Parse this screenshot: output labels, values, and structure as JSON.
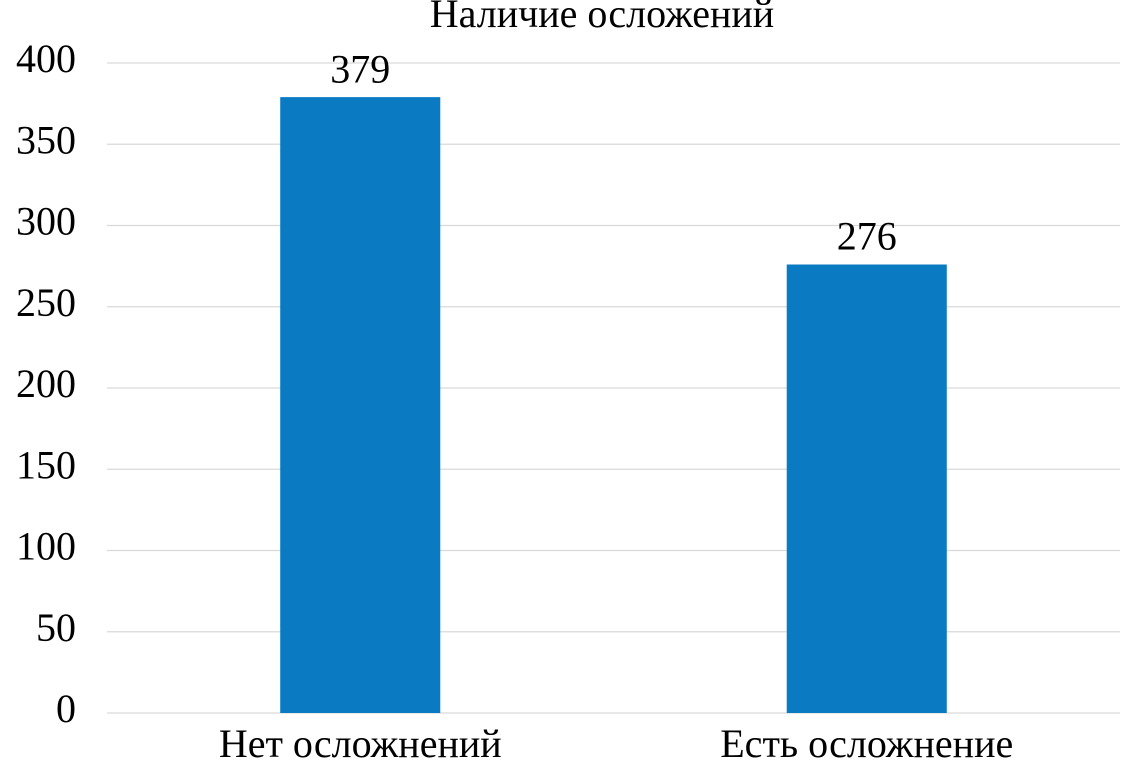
{
  "chart_data": {
    "type": "bar",
    "title": "Наличие осложений",
    "categories": [
      "Нет осложнений",
      "Есть осложнение"
    ],
    "values": [
      379,
      276
    ],
    "color": "#0a7bc2",
    "ylim": [
      0,
      400
    ],
    "yticks": [
      0,
      50,
      100,
      150,
      200,
      250,
      300,
      350,
      400
    ],
    "grid": true
  }
}
